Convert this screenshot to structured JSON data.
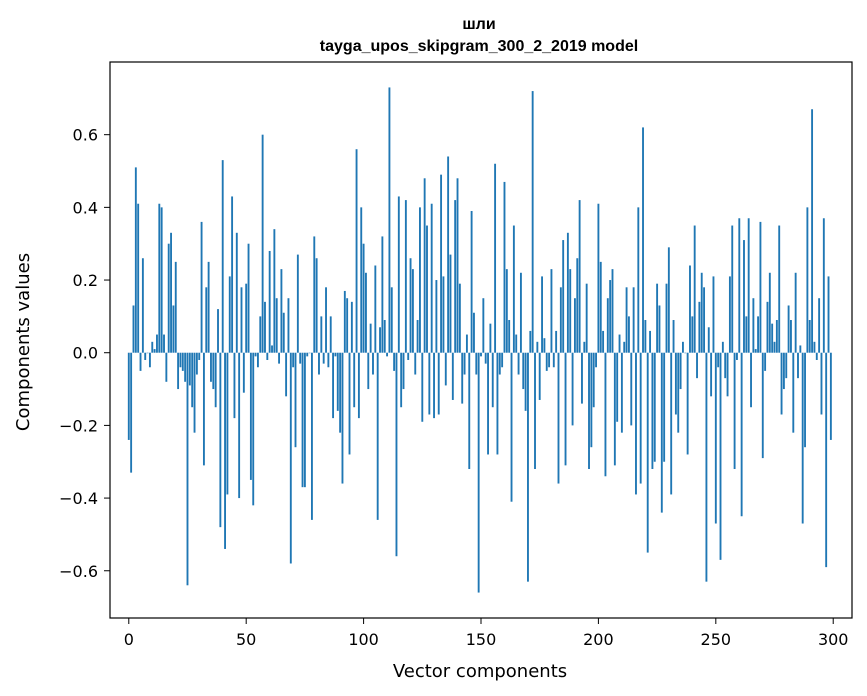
{
  "chart_data": {
    "type": "bar",
    "title": "шли",
    "subtitle": "tayga_upos_skipgram_300_2_2019 model",
    "xlabel": "Vector components",
    "ylabel": "Components values",
    "xlim": [
      -8,
      308
    ],
    "ylim": [
      -0.73,
      0.8
    ],
    "xticks": [
      0,
      50,
      100,
      150,
      200,
      250,
      300
    ],
    "xtick_labels": [
      "0",
      "50",
      "100",
      "150",
      "200",
      "250",
      "300"
    ],
    "yticks": [
      -0.6,
      -0.4,
      -0.2,
      0.0,
      0.2,
      0.4,
      0.6
    ],
    "ytick_labels": [
      "−0.6",
      "−0.4",
      "−0.2",
      "0.0",
      "0.2",
      "0.4",
      "0.6"
    ],
    "grid": false,
    "bar_color": "#1f77b4",
    "x": "indices 0..299",
    "values": [
      -0.24,
      -0.33,
      0.13,
      0.51,
      0.41,
      -0.05,
      0.26,
      -0.02,
      0.0,
      -0.04,
      0.03,
      0.01,
      0.05,
      0.41,
      0.4,
      0.05,
      -0.08,
      0.3,
      0.33,
      0.13,
      0.25,
      -0.1,
      -0.04,
      -0.05,
      -0.08,
      -0.64,
      -0.09,
      -0.15,
      -0.22,
      -0.06,
      -0.02,
      0.36,
      -0.31,
      0.18,
      0.25,
      -0.08,
      -0.1,
      -0.15,
      0.12,
      -0.48,
      0.53,
      -0.54,
      -0.39,
      0.21,
      0.43,
      -0.18,
      0.33,
      -0.4,
      0.18,
      -0.11,
      0.19,
      0.3,
      -0.35,
      -0.42,
      -0.01,
      -0.04,
      0.1,
      0.6,
      0.14,
      -0.02,
      0.28,
      0.02,
      0.34,
      0.15,
      -0.03,
      0.23,
      0.11,
      -0.12,
      0.15,
      -0.58,
      -0.04,
      -0.26,
      0.27,
      -0.03,
      -0.37,
      -0.37,
      -0.01,
      0.0,
      -0.46,
      0.32,
      0.26,
      -0.06,
      0.1,
      -0.03,
      0.18,
      -0.04,
      0.1,
      -0.18,
      -0.01,
      -0.16,
      -0.22,
      -0.36,
      0.17,
      0.15,
      -0.28,
      0.14,
      -0.15,
      0.56,
      -0.18,
      0.4,
      0.3,
      0.22,
      -0.1,
      0.08,
      -0.06,
      0.24,
      -0.46,
      0.07,
      0.32,
      0.09,
      -0.01,
      0.73,
      0.18,
      -0.05,
      -0.56,
      0.43,
      -0.15,
      -0.1,
      0.42,
      -0.02,
      0.26,
      0.23,
      -0.06,
      0.09,
      0.4,
      -0.19,
      0.48,
      0.35,
      -0.17,
      0.41,
      -0.18,
      0.2,
      -0.17,
      0.49,
      0.21,
      -0.09,
      0.54,
      0.27,
      -0.13,
      0.42,
      0.48,
      0.19,
      -0.14,
      -0.06,
      0.05,
      -0.32,
      0.39,
      0.11,
      -0.06,
      -0.66,
      -0.01,
      0.15,
      -0.03,
      -0.28,
      0.08,
      -0.15,
      0.52,
      -0.28,
      -0.06,
      -0.04,
      0.47,
      0.23,
      0.09,
      -0.41,
      0.35,
      0.05,
      -0.06,
      0.22,
      -0.1,
      -0.16,
      -0.63,
      0.06,
      0.72,
      -0.32,
      0.03,
      -0.13,
      0.21,
      0.04,
      -0.05,
      -0.04,
      0.23,
      -0.04,
      0.06,
      -0.36,
      0.18,
      0.31,
      -0.31,
      0.33,
      0.23,
      -0.2,
      0.15,
      0.26,
      0.42,
      -0.14,
      0.03,
      0.19,
      -0.32,
      -0.26,
      -0.15,
      -0.04,
      0.41,
      0.25,
      0.06,
      -0.34,
      0.15,
      0.2,
      0.23,
      -0.31,
      -0.19,
      0.05,
      -0.22,
      0.03,
      0.18,
      0.1,
      -0.2,
      0.18,
      -0.39,
      0.4,
      -0.36,
      0.62,
      0.09,
      -0.55,
      0.06,
      -0.32,
      -0.3,
      0.19,
      0.13,
      -0.44,
      -0.3,
      0.19,
      0.29,
      -0.39,
      0.09,
      -0.17,
      -0.22,
      -0.1,
      0.03,
      0.0,
      -0.28,
      0.24,
      0.1,
      0.35,
      -0.07,
      0.14,
      0.22,
      0.18,
      -0.63,
      0.07,
      -0.12,
      0.21,
      -0.47,
      -0.04,
      -0.57,
      0.03,
      -0.07,
      -0.12,
      0.21,
      0.35,
      -0.32,
      -0.02,
      0.37,
      -0.45,
      0.31,
      0.1,
      0.37,
      -0.15,
      0.15,
      0.01,
      0.1,
      0.36,
      -0.29,
      -0.05,
      0.14,
      0.22,
      0.08,
      0.03,
      0.09,
      0.35,
      -0.17,
      -0.1,
      -0.07,
      0.13,
      0.09,
      -0.22,
      0.22,
      -0.07,
      0.02,
      -0.47,
      -0.26,
      0.4,
      0.09,
      0.67,
      0.03,
      -0.02,
      0.15,
      -0.17,
      0.37,
      -0.59,
      0.21,
      -0.24
    ]
  }
}
